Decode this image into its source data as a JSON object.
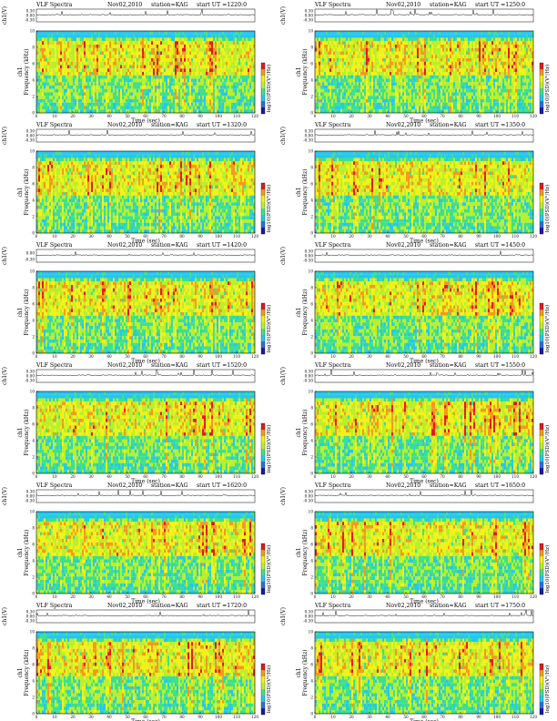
{
  "chart_data": {
    "type": "heatmap",
    "common": {
      "title": "VLF Spectra",
      "date": "Nov02,2010",
      "station": "station=KAG",
      "start_prefix": "start  UT  =",
      "top_ylabel": "ch1(V)",
      "top_yticks": [
        "0.00",
        "-0.30"
      ],
      "top_yticks_alt": [
        "0.30",
        "0.00",
        "-0.30"
      ],
      "ylabel_channel": "ch1",
      "ylabel": "Frequency (kHz)",
      "xlabel": "Time (sec)",
      "xticks": [
        "0",
        "10",
        "20",
        "30",
        "40",
        "50",
        "60",
        "70",
        "80",
        "90",
        "100",
        "110",
        "120"
      ],
      "yticks": [
        "0",
        "2",
        "4",
        "6",
        "8",
        "10"
      ],
      "ylim": [
        0,
        10
      ],
      "xlim": [
        0,
        120
      ],
      "colorbar_label": "log10(PSD)(V²/Hz)",
      "colormap": [
        "#1a1aa6",
        "#2a6ee6",
        "#26c7ef",
        "#3fe08c",
        "#b9ef2c",
        "#f2f219",
        "#f59a1c",
        "#e31a1c",
        "#ffffff"
      ]
    },
    "panels": [
      {
        "start_ut": "1220:0",
        "top_ticks": "alt"
      },
      {
        "start_ut": "1250:0",
        "top_ticks": "alt"
      },
      {
        "start_ut": "1320:0",
        "top_ticks": "alt"
      },
      {
        "start_ut": "1350:0",
        "top_ticks": "alt"
      },
      {
        "start_ut": "1420:0",
        "top_ticks": "short"
      },
      {
        "start_ut": "1450:0",
        "top_ticks": "alt"
      },
      {
        "start_ut": "1520:0",
        "top_ticks": "alt"
      },
      {
        "start_ut": "1550:0",
        "top_ticks": "alt"
      },
      {
        "start_ut": "1620:0",
        "top_ticks": "alt"
      },
      {
        "start_ut": "1650:0",
        "top_ticks": "alt"
      },
      {
        "start_ut": "1720:0",
        "top_ticks": "alt"
      },
      {
        "start_ut": "1750:0",
        "top_ticks": "alt"
      }
    ]
  }
}
